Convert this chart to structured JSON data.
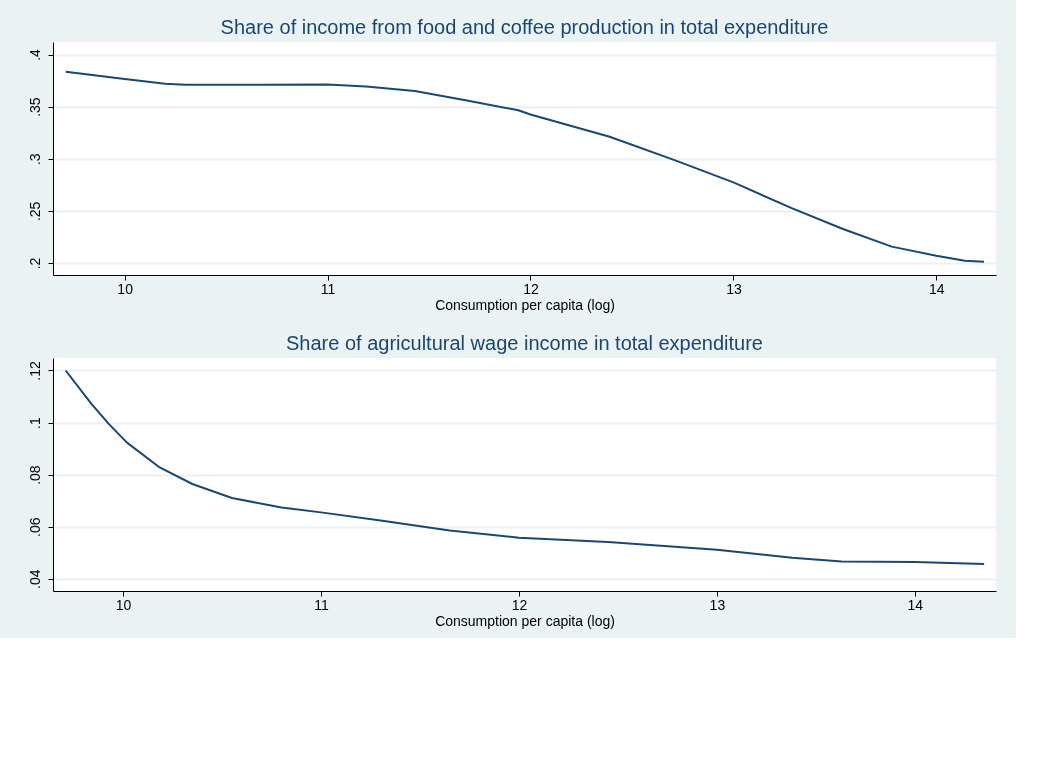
{
  "chart_data": [
    {
      "type": "line",
      "title": "Share of income from food and coffee production in total expenditure",
      "xlabel": "Consumption per capita (log)",
      "color": "#1a476f",
      "grid": "y",
      "x": [
        9.71,
        10.0,
        10.2,
        10.3,
        10.69,
        11.0,
        11.19,
        11.43,
        11.68,
        11.94,
        12.0,
        12.39,
        12.71,
        13.0,
        13.29,
        13.54,
        13.78,
        14.0,
        14.14,
        14.235
      ],
      "values": [
        0.3834,
        0.3764,
        0.3719,
        0.371,
        0.371,
        0.3712,
        0.3693,
        0.3649,
        0.3562,
        0.3465,
        0.3425,
        0.3211,
        0.2987,
        0.2773,
        0.2524,
        0.2326,
        0.2157,
        0.207,
        0.2022,
        0.2013
      ],
      "xlim": [
        9.647,
        14.294
      ],
      "xticks": [
        10,
        11,
        12,
        13,
        14
      ],
      "ylim": [
        0.1885,
        0.412
      ],
      "yticks": [
        {
          "value": 0.2,
          "label": ".2"
        },
        {
          "value": 0.25,
          "label": ".25"
        },
        {
          "value": 0.3,
          "label": ".3"
        },
        {
          "value": 0.35,
          "label": ".35"
        },
        {
          "value": 0.4,
          "label": ".4"
        }
      ]
    },
    {
      "type": "line",
      "title": "Share of agricultural wage income in total expenditure",
      "xlabel": "Consumption per capita (log)",
      "color": "#1a476f",
      "grid": "y",
      "x": [
        9.71,
        9.84,
        9.93,
        10.02,
        10.18,
        10.35,
        10.55,
        10.8,
        11.0,
        11.31,
        11.65,
        12.0,
        12.45,
        13.0,
        13.38,
        13.63,
        14.0,
        14.35
      ],
      "values": [
        0.12,
        0.1072,
        0.0993,
        0.0923,
        0.083,
        0.0764,
        0.071,
        0.0674,
        0.0655,
        0.0623,
        0.0585,
        0.0558,
        0.0541,
        0.0511,
        0.0481,
        0.0466,
        0.0464,
        0.0457
      ],
      "xlim": [
        9.646,
        14.41
      ],
      "xticks": [
        10,
        11,
        12,
        13,
        14
      ],
      "ylim": [
        0.0353,
        0.1248
      ],
      "yticks": [
        {
          "value": 0.04,
          "label": ".04"
        },
        {
          "value": 0.06,
          "label": ".06"
        },
        {
          "value": 0.08,
          "label": ".08"
        },
        {
          "value": 0.1,
          "label": ".1"
        },
        {
          "value": 0.12,
          "label": ".12"
        }
      ]
    }
  ]
}
